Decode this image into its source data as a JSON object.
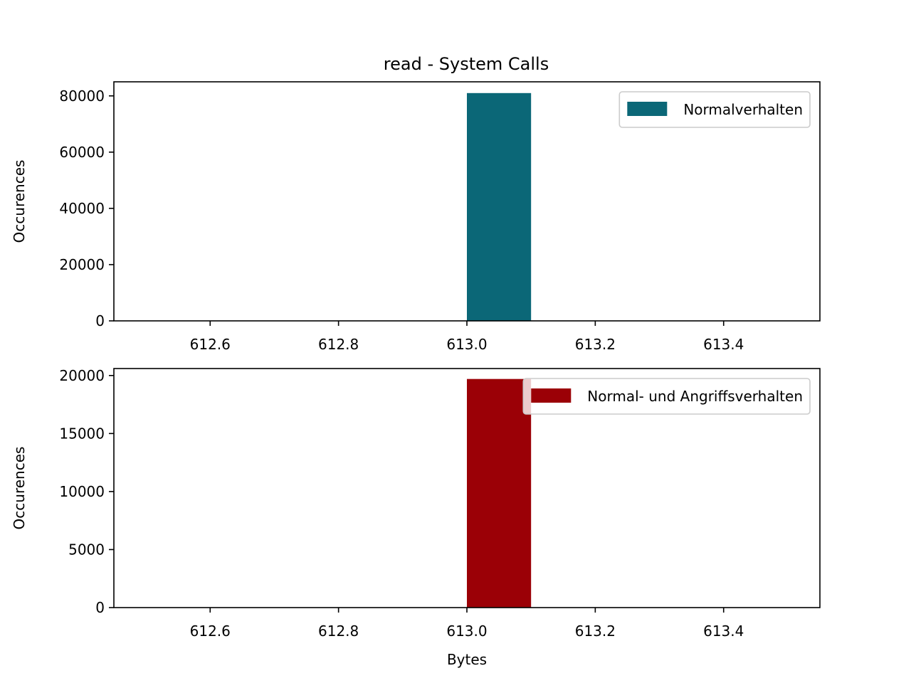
{
  "figure_title": "read - System Calls",
  "chart_data": [
    {
      "type": "bar",
      "title": "read - System Calls",
      "xlabel": "",
      "ylabel": "Occurences",
      "xlim": [
        612.45,
        613.55
      ],
      "ylim": [
        0,
        85000
      ],
      "xticks": [
        612.6,
        612.8,
        613.0,
        613.2,
        613.4
      ],
      "xtick_labels": [
        "612.6",
        "612.8",
        "613.0",
        "613.2",
        "613.4"
      ],
      "yticks": [
        0,
        20000,
        40000,
        60000,
        80000
      ],
      "ytick_labels": [
        "0",
        "20000",
        "40000",
        "60000",
        "80000"
      ],
      "legend_position": "top-right",
      "grid": false,
      "series": [
        {
          "name": "Normalverhalten",
          "color": "#0b6777",
          "bins": [
            {
              "x0": 613.0,
              "x1": 613.1,
              "value": 81000
            }
          ]
        }
      ]
    },
    {
      "type": "bar",
      "title": "",
      "xlabel": "Bytes",
      "ylabel": "Occurences",
      "xlim": [
        612.45,
        613.55
      ],
      "ylim": [
        0,
        20600
      ],
      "xticks": [
        612.6,
        612.8,
        613.0,
        613.2,
        613.4
      ],
      "xtick_labels": [
        "612.6",
        "612.8",
        "613.0",
        "613.2",
        "613.4"
      ],
      "yticks": [
        0,
        5000,
        10000,
        15000,
        20000
      ],
      "ytick_labels": [
        "0",
        "5000",
        "10000",
        "15000",
        "20000"
      ],
      "legend_position": "top-right",
      "grid": false,
      "series": [
        {
          "name": "Normal- und Angriffsverhalten",
          "color": "#9b0006",
          "bins": [
            {
              "x0": 613.0,
              "x1": 613.1,
              "value": 19700
            }
          ]
        }
      ]
    }
  ]
}
